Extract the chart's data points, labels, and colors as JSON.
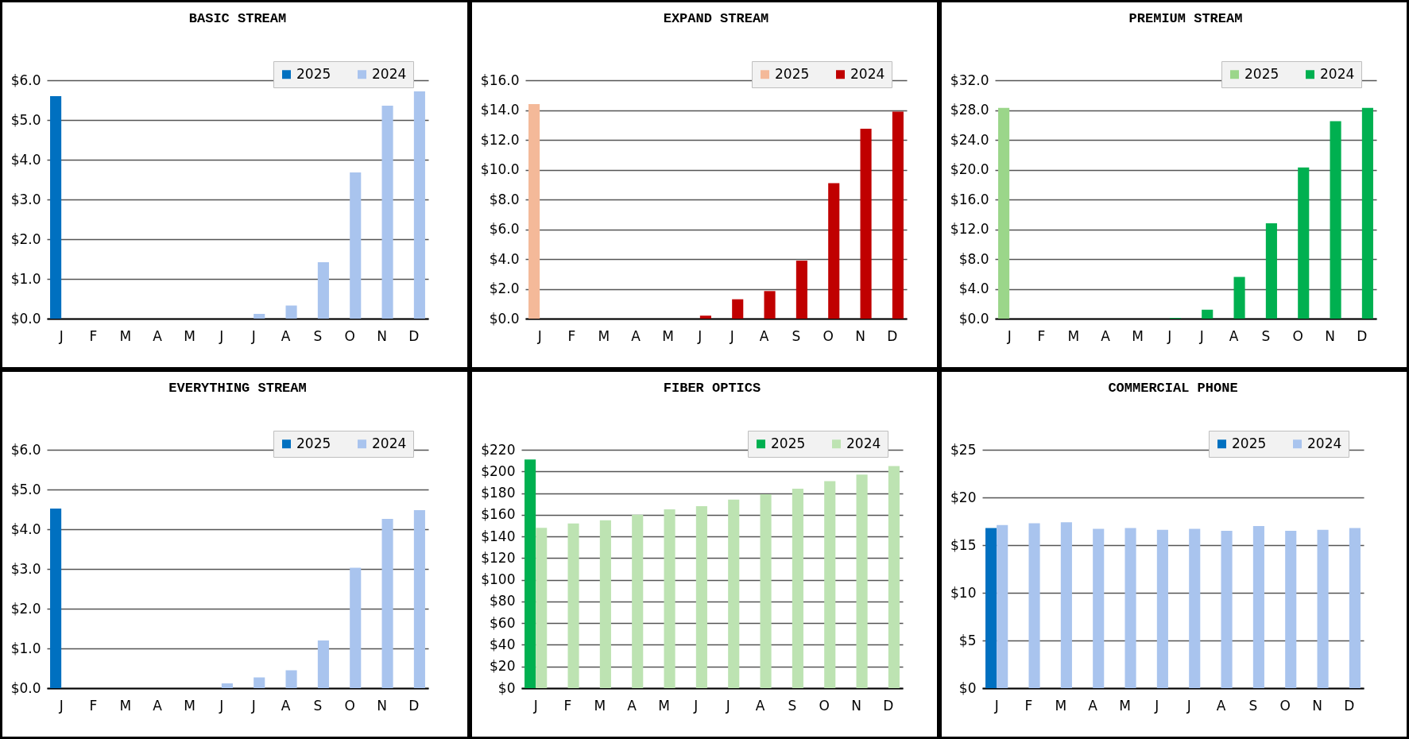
{
  "chart_data": [
    {
      "type": "bar",
      "title": "BASIC STREAM",
      "categories": [
        "J",
        "F",
        "M",
        "A",
        "M",
        "J",
        "J",
        "A",
        "S",
        "O",
        "N",
        "D"
      ],
      "legend": "top right",
      "grid": "y",
      "ylim": [
        0,
        6
      ],
      "yticks": [
        {
          "value": 0,
          "label": "$0.0"
        },
        {
          "value": 1,
          "label": "$1.0"
        },
        {
          "value": 2,
          "label": "$2.0"
        },
        {
          "value": 3,
          "label": "$3.0"
        },
        {
          "value": 4,
          "label": "$4.0"
        },
        {
          "value": 5,
          "label": "$5.0"
        },
        {
          "value": 6,
          "label": "$6.0"
        }
      ],
      "series": [
        {
          "name": "2025",
          "color": "#0070c0",
          "values": [
            5.6,
            null,
            null,
            null,
            null,
            null,
            null,
            null,
            null,
            null,
            null,
            null
          ]
        },
        {
          "name": "2024",
          "color": "#a9c4ee",
          "values": [
            0,
            0,
            0,
            0,
            0,
            0,
            0.12,
            0.33,
            1.42,
            3.68,
            5.36,
            5.72
          ]
        }
      ]
    },
    {
      "type": "bar",
      "title": "EXPAND STREAM",
      "categories": [
        "J",
        "F",
        "M",
        "A",
        "M",
        "J",
        "J",
        "A",
        "S",
        "O",
        "N",
        "D"
      ],
      "legend": "top right",
      "grid": "y",
      "ylim": [
        0,
        16
      ],
      "yticks": [
        {
          "value": 0,
          "label": "$0.0"
        },
        {
          "value": 2,
          "label": "$2.0"
        },
        {
          "value": 4,
          "label": "$4.0"
        },
        {
          "value": 6,
          "label": "$6.0"
        },
        {
          "value": 8,
          "label": "$8.0"
        },
        {
          "value": 10,
          "label": "$10.0"
        },
        {
          "value": 12,
          "label": "$12.0"
        },
        {
          "value": 14,
          "label": "$14.0"
        },
        {
          "value": 16,
          "label": "$16.0"
        }
      ],
      "series": [
        {
          "name": "2025",
          "color": "#f4b999",
          "values": [
            14.4,
            null,
            null,
            null,
            null,
            null,
            null,
            null,
            null,
            null,
            null,
            null
          ]
        },
        {
          "name": "2024",
          "color": "#c00000",
          "values": [
            0,
            0,
            0,
            0,
            0,
            0.2,
            1.3,
            1.85,
            3.9,
            9.1,
            12.75,
            13.9
          ]
        }
      ]
    },
    {
      "type": "bar",
      "title": "PREMIUM STREAM",
      "categories": [
        "J",
        "F",
        "M",
        "A",
        "M",
        "J",
        "J",
        "A",
        "S",
        "O",
        "N",
        "D"
      ],
      "legend": "top right",
      "grid": "y",
      "ylim": [
        0,
        32
      ],
      "yticks": [
        {
          "value": 0,
          "label": "$0.0"
        },
        {
          "value": 4,
          "label": "$4.0"
        },
        {
          "value": 8,
          "label": "$8.0"
        },
        {
          "value": 12,
          "label": "$12.0"
        },
        {
          "value": 16,
          "label": "$16.0"
        },
        {
          "value": 20,
          "label": "$20.0"
        },
        {
          "value": 24,
          "label": "$24.0"
        },
        {
          "value": 28,
          "label": "$28.0"
        },
        {
          "value": 32,
          "label": "$32.0"
        }
      ],
      "series": [
        {
          "name": "2025",
          "color": "#9bd68a",
          "values": [
            28.3,
            null,
            null,
            null,
            null,
            null,
            null,
            null,
            null,
            null,
            null,
            null
          ]
        },
        {
          "name": "2024",
          "color": "#00b050",
          "values": [
            0,
            0,
            0,
            0,
            0,
            0.1,
            1.2,
            5.6,
            12.8,
            20.3,
            26.5,
            28.3
          ]
        }
      ]
    },
    {
      "type": "bar",
      "title": "EVERYTHING STREAM",
      "categories": [
        "J",
        "F",
        "M",
        "A",
        "M",
        "J",
        "J",
        "A",
        "S",
        "O",
        "N",
        "D"
      ],
      "legend": "top right",
      "grid": "y",
      "ylim": [
        0,
        6
      ],
      "yticks": [
        {
          "value": 0,
          "label": "$0.0"
        },
        {
          "value": 1,
          "label": "$1.0"
        },
        {
          "value": 2,
          "label": "$2.0"
        },
        {
          "value": 3,
          "label": "$3.0"
        },
        {
          "value": 4,
          "label": "$4.0"
        },
        {
          "value": 5,
          "label": "$5.0"
        },
        {
          "value": 6,
          "label": "$6.0"
        }
      ],
      "series": [
        {
          "name": "2025",
          "color": "#0070c0",
          "values": [
            4.52,
            null,
            null,
            null,
            null,
            null,
            null,
            null,
            null,
            null,
            null,
            null
          ]
        },
        {
          "name": "2024",
          "color": "#a9c4ee",
          "values": [
            0,
            0,
            0,
            0,
            0,
            0.12,
            0.27,
            0.45,
            1.2,
            3.03,
            4.26,
            4.48
          ]
        }
      ]
    },
    {
      "type": "bar",
      "title": "FIBER OPTICS",
      "categories": [
        "J",
        "F",
        "M",
        "A",
        "M",
        "J",
        "J",
        "A",
        "S",
        "O",
        "N",
        "D"
      ],
      "legend": "top right",
      "grid": "y",
      "ylim": [
        0,
        220
      ],
      "yticks": [
        {
          "value": 0,
          "label": "$0"
        },
        {
          "value": 20,
          "label": "$20"
        },
        {
          "value": 40,
          "label": "$40"
        },
        {
          "value": 60,
          "label": "$60"
        },
        {
          "value": 80,
          "label": "$80"
        },
        {
          "value": 100,
          "label": "$100"
        },
        {
          "value": 120,
          "label": "$120"
        },
        {
          "value": 140,
          "label": "$140"
        },
        {
          "value": 160,
          "label": "$160"
        },
        {
          "value": 180,
          "label": "$180"
        },
        {
          "value": 200,
          "label": "$200"
        },
        {
          "value": 220,
          "label": "$220"
        }
      ],
      "series": [
        {
          "name": "2025",
          "color": "#00b050",
          "values": [
            211,
            null,
            null,
            null,
            null,
            null,
            null,
            null,
            null,
            null,
            null,
            null
          ]
        },
        {
          "name": "2024",
          "color": "#bde3b2",
          "values": [
            148,
            152,
            155,
            160,
            165,
            168,
            174,
            179,
            184,
            191,
            197,
            205
          ]
        }
      ]
    },
    {
      "type": "bar",
      "title": "COMMERCIAL PHONE",
      "categories": [
        "J",
        "F",
        "M",
        "A",
        "M",
        "J",
        "J",
        "A",
        "S",
        "O",
        "N",
        "D"
      ],
      "legend": "top right",
      "grid": "y",
      "ylim": [
        0,
        25
      ],
      "yticks": [
        {
          "value": 0,
          "label": "$0"
        },
        {
          "value": 5,
          "label": "$5"
        },
        {
          "value": 10,
          "label": "$10"
        },
        {
          "value": 15,
          "label": "$15"
        },
        {
          "value": 20,
          "label": "$20"
        },
        {
          "value": 25,
          "label": "$25"
        }
      ],
      "series": [
        {
          "name": "2025",
          "color": "#0070c0",
          "values": [
            16.8,
            null,
            null,
            null,
            null,
            null,
            null,
            null,
            null,
            null,
            null,
            null
          ]
        },
        {
          "name": "2024",
          "color": "#a9c4ee",
          "values": [
            17.1,
            17.3,
            17.4,
            16.7,
            16.8,
            16.6,
            16.7,
            16.5,
            17.0,
            16.5,
            16.6,
            16.8
          ]
        }
      ]
    }
  ]
}
